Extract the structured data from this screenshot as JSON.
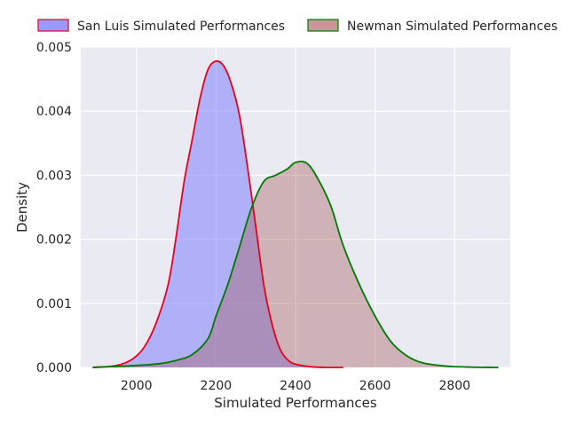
{
  "chart_data": {
    "type": "area",
    "title": "",
    "xlabel": "Simulated Performances",
    "ylabel": "Density",
    "xlim": [
      1860,
      2940
    ],
    "ylim": [
      0,
      0.005
    ],
    "x_ticks": [
      2000,
      2200,
      2400,
      2600,
      2800
    ],
    "x_tick_labels": [
      "2000",
      "2200",
      "2400",
      "2600",
      "2800"
    ],
    "y_ticks": [
      0.0,
      0.001,
      0.002,
      0.003,
      0.004,
      0.005
    ],
    "y_tick_labels": [
      "0.000",
      "0.001",
      "0.002",
      "0.003",
      "0.004",
      "0.005"
    ],
    "grid": true,
    "background": "#eaeaf2",
    "legend_position": "top",
    "series": [
      {
        "name": "San Luis Simulated Performances",
        "fill_color": "#8080ff",
        "fill_opacity": 0.55,
        "line_color": "#e8001c",
        "x": [
          1890,
          1950,
          1990,
          2020,
          2050,
          2080,
          2100,
          2120,
          2140,
          2160,
          2180,
          2200,
          2220,
          2240,
          2260,
          2280,
          2300,
          2320,
          2340,
          2360,
          2380,
          2400,
          2440,
          2480,
          2520
        ],
        "values": [
          0.0,
          3e-05,
          0.00013,
          0.00032,
          0.0007,
          0.0013,
          0.00205,
          0.0029,
          0.00355,
          0.0042,
          0.00465,
          0.00478,
          0.0047,
          0.0044,
          0.0039,
          0.0031,
          0.0022,
          0.0013,
          0.0007,
          0.0003,
          0.00012,
          5e-05,
          1e-05,
          0.0,
          0.0
        ]
      },
      {
        "name": "Newman Simulated Performances",
        "fill_color": "#a66060",
        "fill_opacity": 0.4,
        "line_color": "#007a00",
        "x": [
          1890,
          2000,
          2060,
          2100,
          2140,
          2180,
          2200,
          2230,
          2260,
          2290,
          2320,
          2350,
          2380,
          2400,
          2430,
          2460,
          2490,
          2520,
          2560,
          2600,
          2640,
          2680,
          2720,
          2780,
          2840,
          2910
        ],
        "values": [
          0.0,
          3e-05,
          6e-05,
          0.00011,
          0.0002,
          0.00045,
          0.0008,
          0.0013,
          0.0019,
          0.0025,
          0.0029,
          0.003,
          0.0031,
          0.0032,
          0.00318,
          0.0029,
          0.0025,
          0.0019,
          0.0013,
          0.0008,
          0.0004,
          0.00018,
          7e-05,
          2e-05,
          5e-06,
          0.0
        ]
      }
    ]
  }
}
